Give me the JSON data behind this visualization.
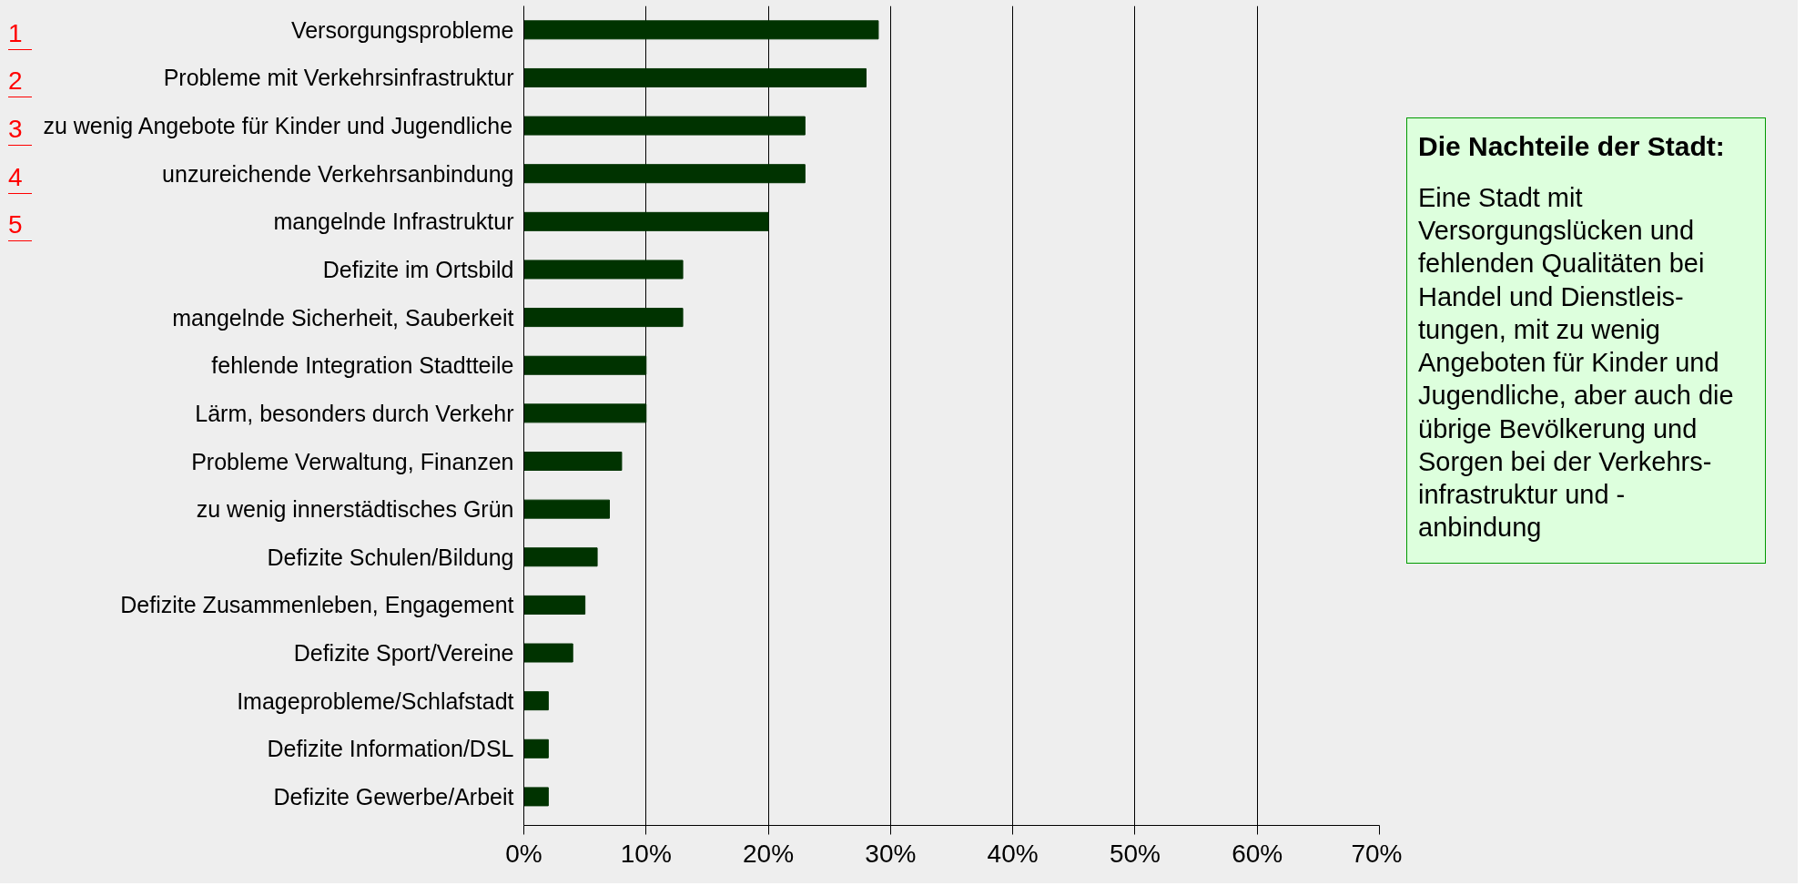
{
  "chart_data": {
    "type": "bar",
    "orientation": "horizontal",
    "categories": [
      "Versorgungsprobleme",
      "Probleme mit Verkehrsinfrastruktur",
      "zu wenig Angebote für Kinder und Jugendliche",
      "unzureichende Verkehrsanbindung",
      "mangelnde Infrastruktur",
      "Defizite im Ortsbild",
      "mangelnde Sicherheit, Sauberkeit",
      "fehlende Integration Stadtteile",
      "Lärm, besonders durch Verkehr",
      "Probleme Verwaltung, Finanzen",
      "zu wenig innerstädtisches Grün",
      "Defizite Schulen/Bildung",
      "Defizite Zusammenleben, Engagement",
      "Defizite Sport/Vereine",
      "Imageprobleme/Schlafstadt",
      "Defizite Information/DSL",
      "Defizite Gewerbe/Arbeit"
    ],
    "values": [
      29,
      28,
      23,
      23,
      20,
      13,
      13,
      10,
      10,
      8,
      7,
      6,
      5,
      4,
      2,
      2,
      2
    ],
    "color": "#003300",
    "xlim": [
      0,
      70
    ],
    "xticks": [
      {
        "value": 0,
        "label": "0%"
      },
      {
        "value": 10,
        "label": "10%"
      },
      {
        "value": 20,
        "label": "20%"
      },
      {
        "value": 30,
        "label": "30%"
      },
      {
        "value": 40,
        "label": "40%"
      },
      {
        "value": 50,
        "label": "50%"
      },
      {
        "value": 60,
        "label": "60%"
      },
      {
        "value": 70,
        "label": "70%"
      }
    ],
    "grid": "x",
    "annotations": [
      "1",
      "2",
      "3",
      "4",
      "5",
      "Die Nachteile der Stadt:",
      "Eine Stadt mit\nVersorgungslücken und\nfehlenden Qualitäten bei\nHandel und Dienstleis-\ntungen, mit zu wenig\nAngeboten für Kinder und\nJugendliche, aber auch die\nübrige Bevölkerung und\nSorgen bei der Verkehrs-\ninfrastruktur und -\nanbindung"
    ]
  }
}
